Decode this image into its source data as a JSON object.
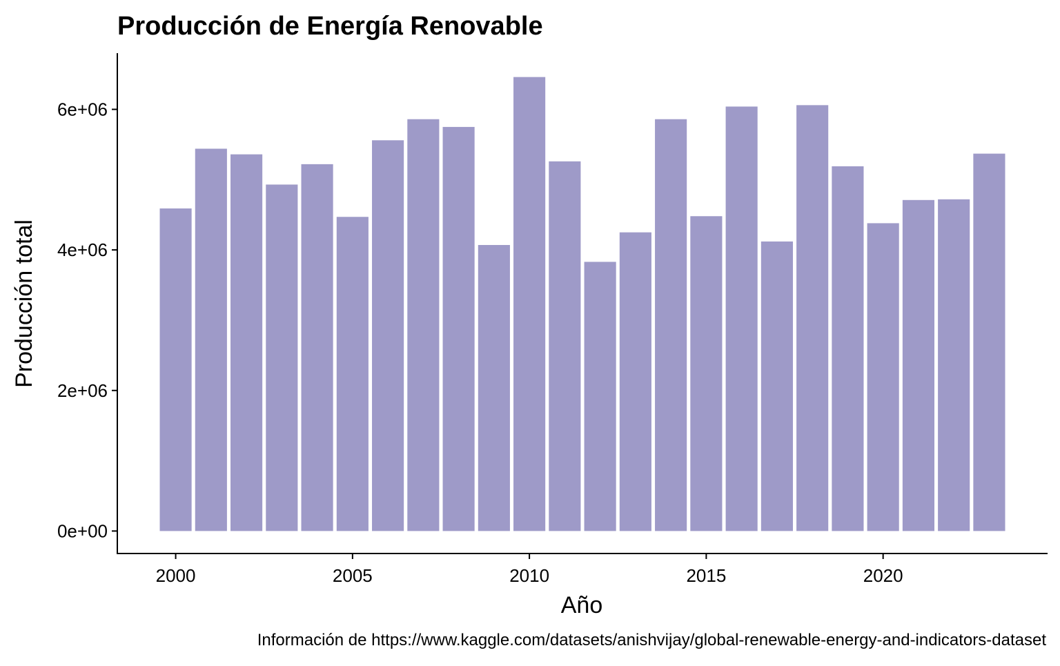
{
  "chart_data": {
    "type": "bar",
    "title": "Producción de Energía Renovable",
    "xlabel": "Año",
    "ylabel": "Producción total",
    "caption": "Información de https://www.kaggle.com/datasets/anishvijay/global-renewable-energy-and-indicators-dataset",
    "x": [
      2000,
      2001,
      2002,
      2003,
      2004,
      2005,
      2006,
      2007,
      2008,
      2009,
      2010,
      2011,
      2012,
      2013,
      2014,
      2015,
      2016,
      2017,
      2018,
      2019,
      2020,
      2021,
      2022,
      2023
    ],
    "values": [
      4590000,
      5440000,
      5360000,
      4930000,
      5220000,
      4470000,
      5560000,
      5860000,
      5750000,
      4070000,
      6460000,
      5260000,
      3830000,
      4250000,
      5860000,
      4480000,
      6040000,
      4120000,
      6060000,
      5190000,
      4380000,
      4710000,
      4720000,
      5370000
    ],
    "xticks": [
      2000,
      2005,
      2010,
      2015,
      2020
    ],
    "xtick_labels": [
      "2000",
      "2005",
      "2010",
      "2015",
      "2020"
    ],
    "yticks": [
      0,
      2000000,
      4000000,
      6000000
    ],
    "ytick_labels": [
      "0e+00",
      "2e+06",
      "4e+06",
      "6e+06"
    ],
    "xlim": [
      1998.35,
      2024.65
    ],
    "ylim": [
      -320000,
      6800000
    ],
    "bar_color": "#9e9ac8",
    "grid": false,
    "legend": "none"
  }
}
